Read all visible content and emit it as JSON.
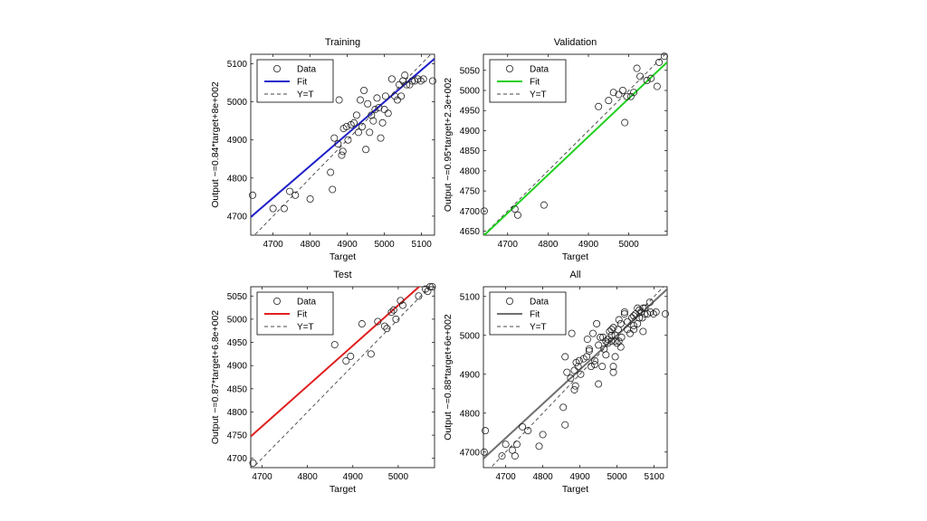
{
  "chart_data": [
    {
      "type": "scatter",
      "title": "Training",
      "xlabel": "Target",
      "ylabel": "Output ~=0.84*target+8e+002",
      "xlim": [
        4640,
        5135
      ],
      "ylim": [
        4650,
        5125
      ],
      "xticks": [
        4700,
        4800,
        4900,
        5000,
        5100
      ],
      "yticks": [
        4700,
        4800,
        4900,
        5000,
        5100
      ],
      "fit": {
        "slope": 0.84,
        "intercept": 800,
        "color": "#2020c8"
      },
      "legend": {
        "placement": "top-left",
        "entries": [
          "Data",
          "Fit",
          "Y=T"
        ]
      },
      "grid": false,
      "series": [
        {
          "points": [
            [
              4645,
              4755
            ],
            [
              4700,
              4720
            ],
            [
              4730,
              4720
            ],
            [
              4745,
              4765
            ],
            [
              4760,
              4755
            ],
            [
              4800,
              4745
            ],
            [
              4855,
              4815
            ],
            [
              4860,
              4770
            ],
            [
              4865,
              4905
            ],
            [
              4875,
              4890
            ],
            [
              4878,
              5005
            ],
            [
              4885,
              4860
            ],
            [
              4888,
              4870
            ],
            [
              4890,
              4930
            ],
            [
              4898,
              4935
            ],
            [
              4902,
              4900
            ],
            [
              4910,
              4940
            ],
            [
              4918,
              4945
            ],
            [
              4925,
              4965
            ],
            [
              4930,
              4920
            ],
            [
              4935,
              5005
            ],
            [
              4940,
              4935
            ],
            [
              4945,
              5030
            ],
            [
              4950,
              4875
            ],
            [
              4955,
              4995
            ],
            [
              4960,
              4920
            ],
            [
              4965,
              4965
            ],
            [
              4970,
              4950
            ],
            [
              4975,
              4980
            ],
            [
              4980,
              5010
            ],
            [
              4985,
              4985
            ],
            [
              4990,
              4905
            ],
            [
              4995,
              4945
            ],
            [
              5000,
              4980
            ],
            [
              5003,
              5015
            ],
            [
              5010,
              4970
            ],
            [
              5020,
              5060
            ],
            [
              5028,
              5015
            ],
            [
              5035,
              5005
            ],
            [
              5040,
              5045
            ],
            [
              5045,
              5015
            ],
            [
              5050,
              5055
            ],
            [
              5055,
              5070
            ],
            [
              5060,
              5045
            ],
            [
              5068,
              5045
            ],
            [
              5075,
              5055
            ],
            [
              5082,
              5055
            ],
            [
              5090,
              5060
            ],
            [
              5098,
              5055
            ],
            [
              5105,
              5060
            ],
            [
              5130,
              5055
            ]
          ]
        }
      ]
    },
    {
      "type": "scatter",
      "title": "Validation",
      "xlabel": "Target",
      "ylabel": "Output ~=0.95*target+2.3e+002",
      "xlim": [
        4640,
        5095
      ],
      "ylim": [
        4640,
        5090
      ],
      "xticks": [
        4700,
        4800,
        4900,
        5000
      ],
      "yticks": [
        4650,
        4700,
        4750,
        4800,
        4850,
        4900,
        4950,
        5000,
        5050
      ],
      "fit": {
        "slope": 0.95,
        "intercept": 230,
        "color": "#20d020"
      },
      "legend": {
        "placement": "top-left",
        "entries": [
          "Data",
          "Fit",
          "Y=T"
        ]
      },
      "grid": false,
      "series": [
        {
          "points": [
            [
              4642,
              4700
            ],
            [
              4718,
              4705
            ],
            [
              4725,
              4690
            ],
            [
              4790,
              4715
            ],
            [
              4925,
              4960
            ],
            [
              4950,
              4975
            ],
            [
              4962,
              4995
            ],
            [
              4975,
              4990
            ],
            [
              4985,
              5000
            ],
            [
              4990,
              4920
            ],
            [
              4995,
              4985
            ],
            [
              5005,
              4985
            ],
            [
              5012,
              4995
            ],
            [
              5020,
              5055
            ],
            [
              5028,
              5035
            ],
            [
              5045,
              5025
            ],
            [
              5055,
              5030
            ],
            [
              5070,
              5010
            ],
            [
              5075,
              5070
            ],
            [
              5088,
              5085
            ]
          ]
        }
      ]
    },
    {
      "type": "scatter",
      "title": "Test",
      "xlabel": "Target",
      "ylabel": "Output ~=0.87*target+6.8e+002",
      "xlim": [
        4675,
        5080
      ],
      "ylim": [
        4680,
        5070
      ],
      "xticks": [
        4700,
        4800,
        4900,
        5000
      ],
      "yticks": [
        4700,
        4750,
        4800,
        4850,
        4900,
        4950,
        5000,
        5050
      ],
      "fit": {
        "slope": 0.87,
        "intercept": 680,
        "color": "#e02020"
      },
      "legend": {
        "placement": "top-left",
        "entries": [
          "Data",
          "Fit",
          "Y=T"
        ]
      },
      "grid": false,
      "series": [
        {
          "points": [
            [
              4680,
              4690
            ],
            [
              4860,
              4945
            ],
            [
              4885,
              4910
            ],
            [
              4895,
              4920
            ],
            [
              4920,
              4990
            ],
            [
              4940,
              4925
            ],
            [
              4955,
              4995
            ],
            [
              4970,
              4985
            ],
            [
              4975,
              4980
            ],
            [
              4985,
              5015
            ],
            [
              4990,
              5020
            ],
            [
              4995,
              5000
            ],
            [
              5005,
              5040
            ],
            [
              5010,
              5030
            ],
            [
              5045,
              5050
            ],
            [
              5060,
              5065
            ],
            [
              5065,
              5060
            ],
            [
              5070,
              5070
            ],
            [
              5075,
              5070
            ]
          ]
        }
      ]
    },
    {
      "type": "scatter",
      "title": "All",
      "xlabel": "Target",
      "ylabel": "Output ~=0.88*target+6e+002",
      "xlim": [
        4640,
        5135
      ],
      "ylim": [
        4660,
        5125
      ],
      "xticks": [
        4700,
        4800,
        4900,
        5000,
        5100
      ],
      "yticks": [
        4700,
        4800,
        4900,
        5000,
        5100
      ],
      "fit": {
        "slope": 0.88,
        "intercept": 600,
        "color": "#707070"
      },
      "legend": {
        "placement": "top-left",
        "entries": [
          "Data",
          "Fit",
          "Y=T"
        ]
      },
      "grid": false,
      "series": [
        {
          "points": [
            [
              4642,
              4700
            ],
            [
              4645,
              4755
            ],
            [
              4690,
              4690
            ],
            [
              4700,
              4720
            ],
            [
              4718,
              4705
            ],
            [
              4725,
              4690
            ],
            [
              4730,
              4720
            ],
            [
              4745,
              4765
            ],
            [
              4760,
              4755
            ],
            [
              4790,
              4715
            ],
            [
              4800,
              4745
            ],
            [
              4855,
              4815
            ],
            [
              4860,
              4770
            ],
            [
              4860,
              4945
            ],
            [
              4865,
              4905
            ],
            [
              4875,
              4890
            ],
            [
              4878,
              5005
            ],
            [
              4885,
              4860
            ],
            [
              4885,
              4910
            ],
            [
              4888,
              4870
            ],
            [
              4890,
              4930
            ],
            [
              4895,
              4920
            ],
            [
              4898,
              4935
            ],
            [
              4902,
              4900
            ],
            [
              4910,
              4940
            ],
            [
              4918,
              4945
            ],
            [
              4920,
              4990
            ],
            [
              4925,
              4960
            ],
            [
              4925,
              4965
            ],
            [
              4930,
              4920
            ],
            [
              4935,
              5005
            ],
            [
              4940,
              4935
            ],
            [
              4940,
              4925
            ],
            [
              4945,
              5030
            ],
            [
              4950,
              4875
            ],
            [
              4950,
              4975
            ],
            [
              4955,
              4995
            ],
            [
              4960,
              4920
            ],
            [
              4962,
              4995
            ],
            [
              4965,
              4965
            ],
            [
              4970,
              4950
            ],
            [
              4970,
              4985
            ],
            [
              4975,
              4980
            ],
            [
              4975,
              4990
            ],
            [
              4980,
              5010
            ],
            [
              4985,
              4985
            ],
            [
              4985,
              5000
            ],
            [
              4985,
              5015
            ],
            [
              4990,
              4905
            ],
            [
              4990,
              4920
            ],
            [
              4990,
              5020
            ],
            [
              4995,
              4945
            ],
            [
              4995,
              4985
            ],
            [
              4995,
              5000
            ],
            [
              5000,
              4980
            ],
            [
              5003,
              5015
            ],
            [
              5005,
              4985
            ],
            [
              5005,
              5040
            ],
            [
              5010,
              4970
            ],
            [
              5010,
              5030
            ],
            [
              5012,
              4995
            ],
            [
              5020,
              5060
            ],
            [
              5020,
              5055
            ],
            [
              5028,
              5015
            ],
            [
              5028,
              5035
            ],
            [
              5035,
              5005
            ],
            [
              5040,
              5045
            ],
            [
              5045,
              5015
            ],
            [
              5045,
              5025
            ],
            [
              5045,
              5050
            ],
            [
              5050,
              5055
            ],
            [
              5055,
              5070
            ],
            [
              5055,
              5030
            ],
            [
              5060,
              5045
            ],
            [
              5060,
              5065
            ],
            [
              5065,
              5060
            ],
            [
              5068,
              5045
            ],
            [
              5070,
              5010
            ],
            [
              5070,
              5070
            ],
            [
              5075,
              5055
            ],
            [
              5075,
              5070
            ],
            [
              5082,
              5055
            ],
            [
              5088,
              5085
            ],
            [
              5090,
              5060
            ],
            [
              5098,
              5055
            ],
            [
              5105,
              5060
            ],
            [
              5130,
              5055
            ]
          ]
        }
      ]
    }
  ]
}
